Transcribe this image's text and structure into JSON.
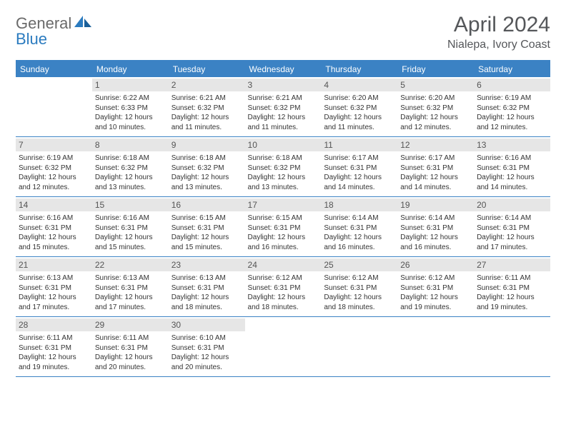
{
  "brand": {
    "part1": "General",
    "part2": "Blue"
  },
  "title": "April 2024",
  "location": "Nialepa, Ivory Coast",
  "colors": {
    "header_bg": "#3b82c4",
    "header_text": "#ffffff",
    "daynum_bg": "#e6e6e6",
    "text": "#333333",
    "border": "#3b82c4",
    "brand_gray": "#6a6a6a",
    "brand_blue": "#2b7bbf"
  },
  "daysOfWeek": [
    "Sunday",
    "Monday",
    "Tuesday",
    "Wednesday",
    "Thursday",
    "Friday",
    "Saturday"
  ],
  "layout": {
    "columns": 7,
    "rows": 5,
    "cell_font_size_pt": 7.5,
    "title_font_size_pt": 22
  },
  "weeks": [
    [
      {
        "n": "",
        "sr": "",
        "ss": "",
        "dl": ""
      },
      {
        "n": "1",
        "sr": "Sunrise: 6:22 AM",
        "ss": "Sunset: 6:33 PM",
        "dl": "Daylight: 12 hours and 10 minutes."
      },
      {
        "n": "2",
        "sr": "Sunrise: 6:21 AM",
        "ss": "Sunset: 6:32 PM",
        "dl": "Daylight: 12 hours and 11 minutes."
      },
      {
        "n": "3",
        "sr": "Sunrise: 6:21 AM",
        "ss": "Sunset: 6:32 PM",
        "dl": "Daylight: 12 hours and 11 minutes."
      },
      {
        "n": "4",
        "sr": "Sunrise: 6:20 AM",
        "ss": "Sunset: 6:32 PM",
        "dl": "Daylight: 12 hours and 11 minutes."
      },
      {
        "n": "5",
        "sr": "Sunrise: 6:20 AM",
        "ss": "Sunset: 6:32 PM",
        "dl": "Daylight: 12 hours and 12 minutes."
      },
      {
        "n": "6",
        "sr": "Sunrise: 6:19 AM",
        "ss": "Sunset: 6:32 PM",
        "dl": "Daylight: 12 hours and 12 minutes."
      }
    ],
    [
      {
        "n": "7",
        "sr": "Sunrise: 6:19 AM",
        "ss": "Sunset: 6:32 PM",
        "dl": "Daylight: 12 hours and 12 minutes."
      },
      {
        "n": "8",
        "sr": "Sunrise: 6:18 AM",
        "ss": "Sunset: 6:32 PM",
        "dl": "Daylight: 12 hours and 13 minutes."
      },
      {
        "n": "9",
        "sr": "Sunrise: 6:18 AM",
        "ss": "Sunset: 6:32 PM",
        "dl": "Daylight: 12 hours and 13 minutes."
      },
      {
        "n": "10",
        "sr": "Sunrise: 6:18 AM",
        "ss": "Sunset: 6:32 PM",
        "dl": "Daylight: 12 hours and 13 minutes."
      },
      {
        "n": "11",
        "sr": "Sunrise: 6:17 AM",
        "ss": "Sunset: 6:31 PM",
        "dl": "Daylight: 12 hours and 14 minutes."
      },
      {
        "n": "12",
        "sr": "Sunrise: 6:17 AM",
        "ss": "Sunset: 6:31 PM",
        "dl": "Daylight: 12 hours and 14 minutes."
      },
      {
        "n": "13",
        "sr": "Sunrise: 6:16 AM",
        "ss": "Sunset: 6:31 PM",
        "dl": "Daylight: 12 hours and 14 minutes."
      }
    ],
    [
      {
        "n": "14",
        "sr": "Sunrise: 6:16 AM",
        "ss": "Sunset: 6:31 PM",
        "dl": "Daylight: 12 hours and 15 minutes."
      },
      {
        "n": "15",
        "sr": "Sunrise: 6:16 AM",
        "ss": "Sunset: 6:31 PM",
        "dl": "Daylight: 12 hours and 15 minutes."
      },
      {
        "n": "16",
        "sr": "Sunrise: 6:15 AM",
        "ss": "Sunset: 6:31 PM",
        "dl": "Daylight: 12 hours and 15 minutes."
      },
      {
        "n": "17",
        "sr": "Sunrise: 6:15 AM",
        "ss": "Sunset: 6:31 PM",
        "dl": "Daylight: 12 hours and 16 minutes."
      },
      {
        "n": "18",
        "sr": "Sunrise: 6:14 AM",
        "ss": "Sunset: 6:31 PM",
        "dl": "Daylight: 12 hours and 16 minutes."
      },
      {
        "n": "19",
        "sr": "Sunrise: 6:14 AM",
        "ss": "Sunset: 6:31 PM",
        "dl": "Daylight: 12 hours and 16 minutes."
      },
      {
        "n": "20",
        "sr": "Sunrise: 6:14 AM",
        "ss": "Sunset: 6:31 PM",
        "dl": "Daylight: 12 hours and 17 minutes."
      }
    ],
    [
      {
        "n": "21",
        "sr": "Sunrise: 6:13 AM",
        "ss": "Sunset: 6:31 PM",
        "dl": "Daylight: 12 hours and 17 minutes."
      },
      {
        "n": "22",
        "sr": "Sunrise: 6:13 AM",
        "ss": "Sunset: 6:31 PM",
        "dl": "Daylight: 12 hours and 17 minutes."
      },
      {
        "n": "23",
        "sr": "Sunrise: 6:13 AM",
        "ss": "Sunset: 6:31 PM",
        "dl": "Daylight: 12 hours and 18 minutes."
      },
      {
        "n": "24",
        "sr": "Sunrise: 6:12 AM",
        "ss": "Sunset: 6:31 PM",
        "dl": "Daylight: 12 hours and 18 minutes."
      },
      {
        "n": "25",
        "sr": "Sunrise: 6:12 AM",
        "ss": "Sunset: 6:31 PM",
        "dl": "Daylight: 12 hours and 18 minutes."
      },
      {
        "n": "26",
        "sr": "Sunrise: 6:12 AM",
        "ss": "Sunset: 6:31 PM",
        "dl": "Daylight: 12 hours and 19 minutes."
      },
      {
        "n": "27",
        "sr": "Sunrise: 6:11 AM",
        "ss": "Sunset: 6:31 PM",
        "dl": "Daylight: 12 hours and 19 minutes."
      }
    ],
    [
      {
        "n": "28",
        "sr": "Sunrise: 6:11 AM",
        "ss": "Sunset: 6:31 PM",
        "dl": "Daylight: 12 hours and 19 minutes."
      },
      {
        "n": "29",
        "sr": "Sunrise: 6:11 AM",
        "ss": "Sunset: 6:31 PM",
        "dl": "Daylight: 12 hours and 20 minutes."
      },
      {
        "n": "30",
        "sr": "Sunrise: 6:10 AM",
        "ss": "Sunset: 6:31 PM",
        "dl": "Daylight: 12 hours and 20 minutes."
      },
      {
        "n": "",
        "sr": "",
        "ss": "",
        "dl": ""
      },
      {
        "n": "",
        "sr": "",
        "ss": "",
        "dl": ""
      },
      {
        "n": "",
        "sr": "",
        "ss": "",
        "dl": ""
      },
      {
        "n": "",
        "sr": "",
        "ss": "",
        "dl": ""
      }
    ]
  ]
}
